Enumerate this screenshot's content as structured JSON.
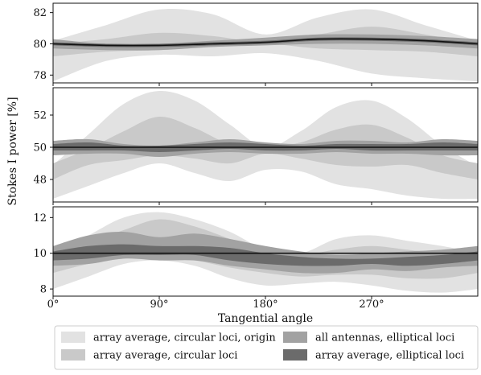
{
  "chart_data": {
    "type": "area",
    "ylabel": "Stokes I power [%]",
    "xlabel": "Tangential angle",
    "xlim": [
      0,
      360
    ],
    "x_ticks": [
      0,
      90,
      180,
      270
    ],
    "x_tick_labels": [
      "0°",
      "90°",
      "180°",
      "270°"
    ],
    "grid": false,
    "legend_position": "bottom",
    "legend": [
      {
        "label": "array average, circular loci, origin",
        "color": "#e2e2e2"
      },
      {
        "label": "array average, circular loci",
        "color": "#c9c9c9"
      },
      {
        "label": "all antennas, elliptical loci",
        "color": "#a2a2a2"
      },
      {
        "label": "array average, elliptical loci",
        "color": "#6b6b6b"
      }
    ],
    "reference_line_color": "#111111",
    "panels": [
      {
        "ylim": [
          77.5,
          82.6
        ],
        "y_ticks": [
          78,
          80,
          82
        ],
        "y_tick_labels": [
          "78",
          "80",
          "82"
        ],
        "reference": {
          "x": [
            0,
            45,
            90,
            135,
            180,
            225,
            270,
            315,
            360
          ],
          "y": [
            80.0,
            79.9,
            79.9,
            80.0,
            80.1,
            80.3,
            80.3,
            80.2,
            80.0
          ]
        },
        "bands": [
          {
            "name": "array average, circular loci, origin",
            "x": [
              0,
              45,
              90,
              135,
              180,
              225,
              270,
              315,
              360
            ],
            "upper": [
              80.2,
              81.2,
              82.2,
              81.9,
              80.6,
              81.7,
              82.2,
              81.2,
              80.2
            ],
            "lower": [
              77.6,
              78.9,
              79.3,
              79.2,
              79.4,
              78.9,
              78.1,
              77.8,
              77.6
            ]
          },
          {
            "name": "array average, circular loci",
            "x": [
              0,
              45,
              90,
              135,
              180,
              225,
              270,
              315,
              360
            ],
            "upper": [
              80.0,
              80.3,
              80.7,
              80.5,
              80.1,
              80.6,
              81.1,
              80.6,
              80.0
            ],
            "lower": [
              79.2,
              79.5,
              79.6,
              79.8,
              80.0,
              79.7,
              79.6,
              79.5,
              79.2
            ]
          },
          {
            "name": "all antennas, elliptical loci",
            "x": [
              0,
              45,
              90,
              135,
              180,
              225,
              270,
              315,
              360
            ],
            "upper": [
              80.3,
              80.0,
              80.0,
              80.2,
              80.4,
              80.6,
              80.6,
              80.5,
              80.3
            ],
            "lower": [
              79.7,
              79.6,
              79.6,
              79.8,
              79.9,
              80.0,
              80.0,
              79.9,
              79.7
            ]
          },
          {
            "name": "array average, elliptical loci",
            "x": [
              0,
              45,
              90,
              135,
              180,
              225,
              270,
              315,
              360
            ],
            "upper": [
              80.1,
              80.0,
              80.0,
              80.1,
              80.2,
              80.4,
              80.4,
              80.3,
              80.1
            ],
            "lower": [
              79.9,
              79.8,
              79.8,
              79.9,
              80.0,
              80.2,
              80.2,
              80.1,
              79.9
            ]
          }
        ]
      },
      {
        "ylim": [
          46.6,
          53.7
        ],
        "y_ticks": [
          48,
          50,
          52
        ],
        "y_tick_labels": [
          "48",
          "50",
          "52"
        ],
        "reference": {
          "x": [
            0,
            45,
            90,
            135,
            180,
            225,
            270,
            315,
            360
          ],
          "y": [
            50.0,
            50.0,
            50.0,
            50.0,
            50.0,
            50.0,
            50.0,
            50.0,
            50.0
          ]
        },
        "bands": [
          {
            "name": "array average, circular loci, origin",
            "x": [
              0,
              30,
              60,
              90,
              120,
              150,
              180,
              210,
              240,
              270,
              300,
              330,
              360
            ],
            "upper": [
              48.9,
              50.8,
              52.7,
              53.5,
              52.9,
              51.4,
              50.0,
              51.0,
              52.5,
              52.9,
              51.8,
              50.1,
              48.8
            ],
            "lower": [
              46.8,
              47.6,
              48.4,
              49.0,
              48.4,
              47.9,
              48.6,
              48.5,
              47.7,
              47.4,
              47.0,
              46.8,
              46.8
            ]
          },
          {
            "name": "array average, circular loci",
            "x": [
              0,
              30,
              60,
              90,
              120,
              150,
              180,
              210,
              240,
              270,
              300,
              330,
              360
            ],
            "upper": [
              49.0,
              49.9,
              51.0,
              51.9,
              51.2,
              50.2,
              50.0,
              50.3,
              51.1,
              51.4,
              50.6,
              49.5,
              49.0
            ],
            "lower": [
              48.0,
              48.9,
              49.2,
              49.5,
              49.3,
              49.0,
              49.6,
              49.3,
              48.9,
              48.8,
              48.9,
              48.4,
              48.0
            ]
          },
          {
            "name": "all antennas, elliptical loci",
            "x": [
              0,
              30,
              60,
              90,
              120,
              150,
              180,
              210,
              240,
              270,
              300,
              330,
              360
            ],
            "upper": [
              50.4,
              50.5,
              50.2,
              50.1,
              50.3,
              50.5,
              50.3,
              50.2,
              50.4,
              50.4,
              50.3,
              50.5,
              50.4
            ],
            "lower": [
              49.5,
              49.6,
              49.6,
              49.4,
              49.6,
              49.7,
              49.6,
              49.6,
              49.7,
              49.6,
              49.6,
              49.5,
              49.5
            ]
          },
          {
            "name": "array average, elliptical loci",
            "x": [
              0,
              30,
              60,
              90,
              120,
              150,
              180,
              210,
              240,
              270,
              300,
              330,
              360
            ],
            "upper": [
              50.2,
              50.3,
              50.1,
              50.1,
              50.2,
              50.3,
              50.2,
              50.1,
              50.2,
              50.2,
              50.2,
              50.3,
              50.2
            ],
            "lower": [
              49.8,
              49.8,
              49.8,
              49.7,
              49.8,
              49.9,
              49.8,
              49.8,
              49.9,
              49.8,
              49.8,
              49.8,
              49.8
            ]
          }
        ]
      },
      {
        "ylim": [
          7.6,
          12.6
        ],
        "y_ticks": [
          8,
          10,
          12
        ],
        "y_tick_labels": [
          "8",
          "10",
          "12"
        ],
        "reference": {
          "x": [
            0,
            45,
            90,
            135,
            180,
            225,
            270,
            315,
            360
          ],
          "y": [
            10.0,
            10.0,
            10.0,
            10.0,
            10.0,
            10.0,
            10.0,
            10.0,
            10.0
          ]
        },
        "bands": [
          {
            "name": "array average, circular loci, origin",
            "x": [
              0,
              30,
              60,
              90,
              120,
              150,
              180,
              210,
              240,
              270,
              300,
              330,
              360
            ],
            "upper": [
              10.0,
              11.0,
              12.0,
              12.3,
              11.9,
              11.2,
              10.2,
              10.0,
              10.8,
              11.0,
              10.7,
              10.4,
              10.0
            ],
            "lower": [
              8.0,
              8.7,
              9.4,
              9.6,
              9.3,
              8.6,
              8.2,
              8.3,
              8.4,
              8.2,
              7.9,
              7.8,
              8.0
            ]
          },
          {
            "name": "array average, circular loci",
            "x": [
              0,
              30,
              60,
              90,
              120,
              150,
              180,
              210,
              240,
              270,
              300,
              330,
              360
            ],
            "upper": [
              10.0,
              10.6,
              11.3,
              11.9,
              11.5,
              10.8,
              10.1,
              9.9,
              10.2,
              10.4,
              10.2,
              10.0,
              10.0
            ],
            "lower": [
              8.9,
              9.4,
              9.7,
              9.8,
              9.6,
              9.2,
              8.9,
              8.7,
              8.8,
              8.8,
              8.6,
              8.6,
              8.9
            ]
          },
          {
            "name": "all antennas, elliptical loci",
            "x": [
              0,
              30,
              60,
              90,
              120,
              150,
              180,
              210,
              240,
              270,
              300,
              330,
              360
            ],
            "upper": [
              10.4,
              11.0,
              11.2,
              10.9,
              11.1,
              10.8,
              10.4,
              10.1,
              9.9,
              10.0,
              10.1,
              10.2,
              10.4
            ],
            "lower": [
              9.3,
              9.4,
              9.7,
              9.6,
              9.6,
              9.3,
              9.1,
              8.9,
              8.9,
              9.1,
              9.0,
              9.2,
              9.3
            ]
          },
          {
            "name": "array average, elliptical loci",
            "x": [
              0,
              30,
              60,
              90,
              120,
              150,
              180,
              210,
              240,
              270,
              300,
              330,
              360
            ],
            "upper": [
              10.1,
              10.4,
              10.5,
              10.4,
              10.4,
              10.3,
              10.0,
              9.8,
              9.7,
              9.7,
              9.8,
              9.9,
              10.1
            ],
            "lower": [
              9.6,
              9.7,
              9.9,
              9.9,
              9.9,
              9.6,
              9.4,
              9.3,
              9.3,
              9.4,
              9.3,
              9.4,
              9.6
            ]
          }
        ]
      }
    ]
  }
}
